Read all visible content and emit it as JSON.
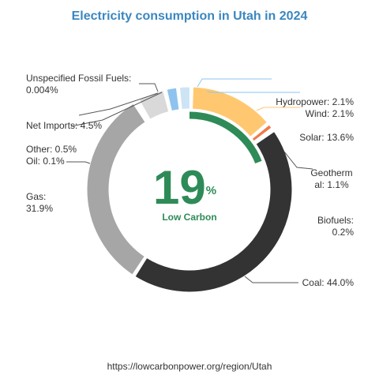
{
  "colors": {
    "title": "#3a87c0",
    "low_carbon": "#2e8b57",
    "leader": "#555555"
  },
  "chart_data": {
    "type": "pie",
    "title": "Electricity consumption in Utah in 2024",
    "center_value": "19",
    "center_unit": "%",
    "center_caption": "Low Carbon",
    "low_carbon_share": 19,
    "footer": "https://lowcarbonpower.org/region/Utah",
    "slices": [
      {
        "label_lines": [
          "Hydropower: 2.1%"
        ],
        "value": 2.1,
        "color": "#8ec3f0"
      },
      {
        "label_lines": [
          "Wind: 2.1%"
        ],
        "value": 2.1,
        "color": "#cde4f5"
      },
      {
        "label_lines": [
          "Solar: 13.6%"
        ],
        "value": 13.6,
        "color": "#ffc870"
      },
      {
        "label_lines": [
          "Geotherm",
          "al: 1.1%"
        ],
        "value": 1.1,
        "color": "#f07a4a"
      },
      {
        "label_lines": [
          "Biofuels:",
          "0.2%"
        ],
        "value": 0.2,
        "color": "#2e8b57"
      },
      {
        "label_lines": [
          "Coal: 44.0%"
        ],
        "value": 44.0,
        "color": "#333333"
      },
      {
        "label_lines": [
          "Gas:",
          "31.9%"
        ],
        "value": 31.9,
        "color": "#a6a6a6"
      },
      {
        "label_lines": [
          "Oil: 0.1%"
        ],
        "value": 0.1,
        "color": "#8c8c8c"
      },
      {
        "label_lines": [
          "Other: 0.5%"
        ],
        "value": 0.5,
        "color": "#b0b0b0"
      },
      {
        "label_lines": [
          "Net Imports: 4.5%"
        ],
        "value": 4.5,
        "color": "#d9d9d9"
      },
      {
        "label_lines": [
          "Unspecified Fossil Fuels:",
          "0.004%"
        ],
        "value": 0.004,
        "color": "#8c8c8c"
      }
    ]
  }
}
